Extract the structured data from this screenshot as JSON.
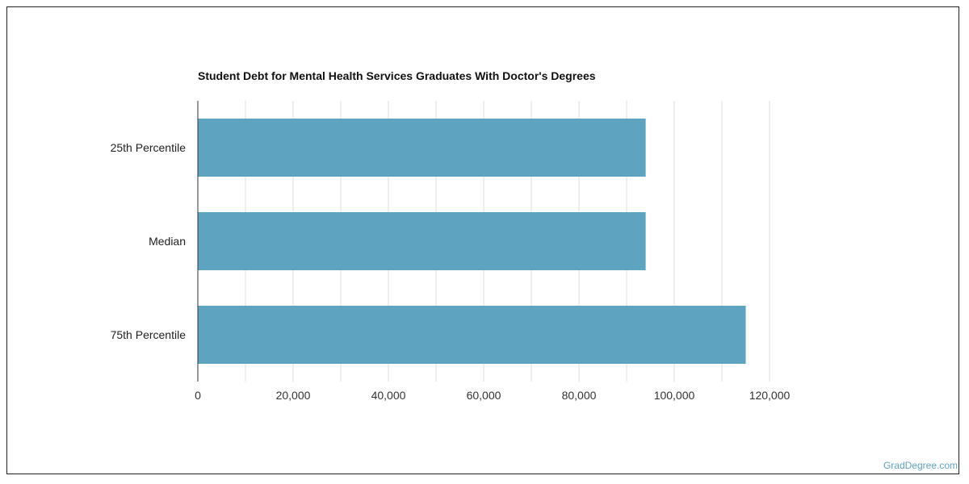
{
  "chart_data": {
    "type": "bar",
    "orientation": "horizontal",
    "title": "Student Debt for Mental Health Services Graduates With Doctor's Degrees",
    "categories": [
      "25th Percentile",
      "Median",
      "75th Percentile"
    ],
    "values": [
      94000,
      94000,
      115000
    ],
    "xlim": [
      0,
      120000
    ],
    "x_ticks": [
      0,
      20000,
      40000,
      60000,
      80000,
      100000,
      120000
    ],
    "x_tick_labels": [
      "0",
      "20,000",
      "40,000",
      "60,000",
      "80,000",
      "100,000",
      "120,000"
    ],
    "xlabel": "",
    "ylabel": "",
    "grid": true,
    "bar_color": "#5ea3bf",
    "grid_color": "#dddddd"
  },
  "watermark": "GradDegree.com"
}
